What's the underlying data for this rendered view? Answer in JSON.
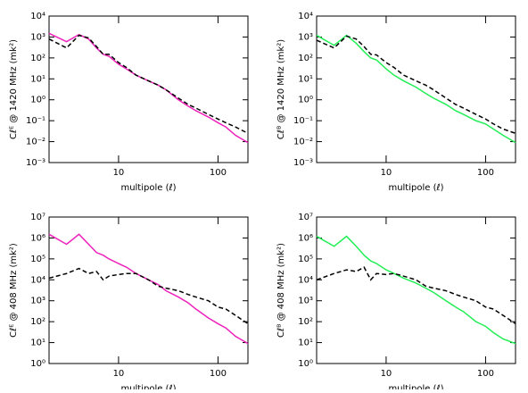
{
  "chart_data": [
    {
      "type": "line",
      "xlabel": "multipole (ℓ)",
      "ylabel": "Cℓᴱ @ 1420 MHz (mk²)",
      "log_x": true,
      "log_y": true,
      "xlim": [
        2,
        200
      ],
      "xticks": [
        10,
        100
      ],
      "ylim": [
        0.001,
        10000
      ],
      "yticks": [
        {
          "value": 0.001,
          "label": "10⁻³"
        },
        {
          "value": 0.01,
          "label": "10⁻²"
        },
        {
          "value": 0.1,
          "label": "10⁻¹"
        },
        {
          "value": 1,
          "label": "10⁰"
        },
        {
          "value": 10,
          "label": "10¹"
        },
        {
          "value": 100,
          "label": "10²"
        },
        {
          "value": 1000,
          "label": "10³"
        },
        {
          "value": 10000,
          "label": "10⁴"
        }
      ],
      "x": [
        2,
        3,
        4,
        5,
        6,
        7,
        8,
        10,
        12,
        15,
        20,
        25,
        30,
        40,
        50,
        60,
        80,
        100,
        120,
        150,
        200
      ],
      "series": [
        {
          "color": "#ee22bb",
          "dashed": false,
          "values": [
            1500,
            600,
            1300,
            800,
            300,
            150,
            120,
            50,
            30,
            15,
            8,
            5,
            3,
            1,
            0.5,
            0.3,
            0.15,
            0.08,
            0.05,
            0.02,
            0.009
          ]
        },
        {
          "color": "#000000",
          "dashed": true,
          "values": [
            800,
            300,
            1200,
            900,
            350,
            150,
            150,
            60,
            35,
            15,
            8,
            5,
            3,
            1.2,
            0.6,
            0.4,
            0.2,
            0.12,
            0.08,
            0.05,
            0.025
          ]
        }
      ]
    },
    {
      "type": "line",
      "xlabel": "multipole (ℓ)",
      "ylabel": "Cℓᴮ @ 1420 MHz (mk²)",
      "log_x": true,
      "log_y": true,
      "xlim": [
        2,
        200
      ],
      "xticks": [
        10,
        100
      ],
      "ylim": [
        0.001,
        10000
      ],
      "yticks": [
        {
          "value": 0.001,
          "label": "10⁻³"
        },
        {
          "value": 0.01,
          "label": "10⁻²"
        },
        {
          "value": 0.1,
          "label": "10⁻¹"
        },
        {
          "value": 1,
          "label": "10⁰"
        },
        {
          "value": 10,
          "label": "10¹"
        },
        {
          "value": 100,
          "label": "10²"
        },
        {
          "value": 1000,
          "label": "10³"
        },
        {
          "value": 10000,
          "label": "10⁴"
        }
      ],
      "x": [
        2,
        3,
        4,
        5,
        6,
        7,
        8,
        10,
        12,
        15,
        20,
        25,
        30,
        40,
        50,
        60,
        80,
        100,
        120,
        150,
        200
      ],
      "series": [
        {
          "color": "#22ee55",
          "dashed": false,
          "values": [
            1200,
            400,
            1200,
            500,
            200,
            100,
            80,
            30,
            15,
            8,
            4,
            2,
            1.2,
            0.6,
            0.3,
            0.2,
            0.1,
            0.07,
            0.04,
            0.02,
            0.009
          ]
        },
        {
          "color": "#000000",
          "dashed": true,
          "values": [
            700,
            300,
            1100,
            800,
            350,
            150,
            140,
            60,
            35,
            15,
            8,
            5,
            3,
            1.2,
            0.6,
            0.4,
            0.2,
            0.12,
            0.07,
            0.04,
            0.025
          ]
        }
      ]
    },
    {
      "type": "line",
      "xlabel": "multipole (ℓ)",
      "ylabel": "Cℓᴱ @ 408 MHz (mk²)",
      "log_x": true,
      "log_y": true,
      "xlim": [
        2,
        200
      ],
      "xticks": [
        10,
        100
      ],
      "ylim": [
        1,
        10000000
      ],
      "yticks": [
        {
          "value": 1,
          "label": "10⁰"
        },
        {
          "value": 10,
          "label": "10¹"
        },
        {
          "value": 100,
          "label": "10²"
        },
        {
          "value": 1000,
          "label": "10³"
        },
        {
          "value": 10000,
          "label": "10⁴"
        },
        {
          "value": 100000,
          "label": "10⁵"
        },
        {
          "value": 1000000,
          "label": "10⁶"
        },
        {
          "value": 10000000,
          "label": "10⁷"
        }
      ],
      "x": [
        2,
        3,
        4,
        5,
        6,
        7,
        8,
        10,
        12,
        15,
        20,
        25,
        30,
        40,
        50,
        60,
        80,
        100,
        120,
        150,
        200
      ],
      "series": [
        {
          "color": "#ee22bb",
          "dashed": false,
          "values": [
            1500000,
            500000,
            1500000,
            500000,
            200000,
            150000,
            100000,
            60000,
            40000,
            20000,
            10000,
            6000,
            3000,
            1500,
            800,
            400,
            150,
            80,
            50,
            20,
            9
          ]
        },
        {
          "color": "#000000",
          "dashed": true,
          "values": [
            12000,
            20000,
            35000,
            20000,
            25000,
            10000,
            15000,
            18000,
            20000,
            20000,
            10000,
            5000,
            4000,
            3000,
            2000,
            1500,
            1000,
            500,
            400,
            200,
            80
          ]
        }
      ]
    },
    {
      "type": "line",
      "xlabel": "multipole (ℓ)",
      "ylabel": "Cℓᴮ @ 408 MHz (mk²)",
      "log_x": true,
      "log_y": true,
      "xlim": [
        2,
        200
      ],
      "xticks": [
        10,
        100
      ],
      "ylim": [
        1,
        10000000
      ],
      "yticks": [
        {
          "value": 1,
          "label": "10⁰"
        },
        {
          "value": 10,
          "label": "10¹"
        },
        {
          "value": 100,
          "label": "10²"
        },
        {
          "value": 1000,
          "label": "10³"
        },
        {
          "value": 10000,
          "label": "10⁴"
        },
        {
          "value": 100000,
          "label": "10⁵"
        },
        {
          "value": 1000000,
          "label": "10⁶"
        },
        {
          "value": 10000000,
          "label": "10⁷"
        }
      ],
      "x": [
        2,
        3,
        4,
        5,
        6,
        7,
        8,
        10,
        12,
        15,
        20,
        25,
        30,
        40,
        50,
        60,
        80,
        100,
        120,
        150,
        200
      ],
      "series": [
        {
          "color": "#22ee55",
          "dashed": false,
          "values": [
            1200000,
            400000,
            1200000,
            400000,
            150000,
            80000,
            60000,
            30000,
            20000,
            12000,
            7000,
            4000,
            2500,
            1000,
            500,
            300,
            100,
            60,
            30,
            15,
            9
          ]
        },
        {
          "color": "#000000",
          "dashed": true,
          "values": [
            10000,
            20000,
            30000,
            25000,
            40000,
            10000,
            20000,
            18000,
            20000,
            15000,
            10000,
            5000,
            4000,
            3000,
            2000,
            1500,
            1000,
            500,
            400,
            200,
            80
          ]
        }
      ]
    }
  ]
}
